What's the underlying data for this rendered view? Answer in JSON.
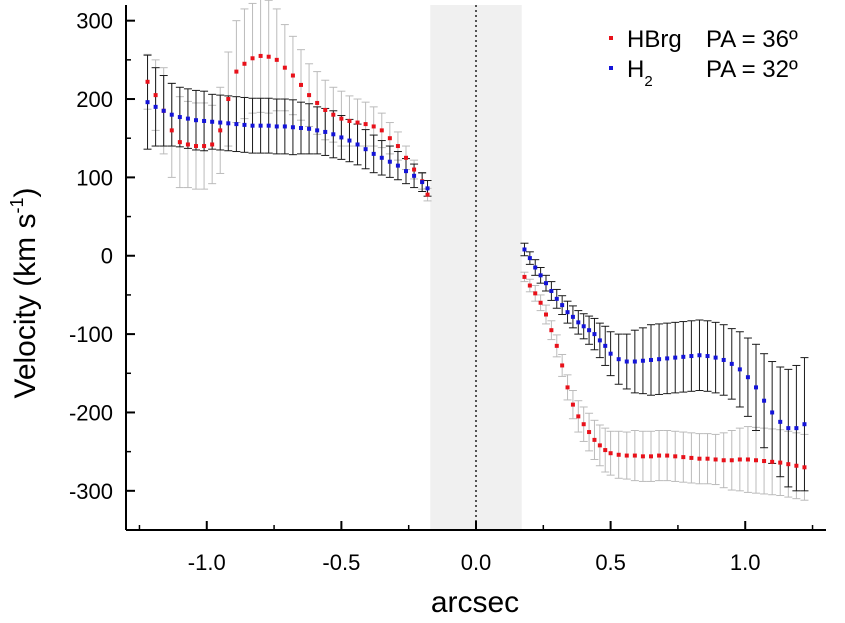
{
  "chart_data": {
    "type": "scatter",
    "title": "",
    "xlabel": "arcsec",
    "ylabel": "Velocity (km s⁻¹)",
    "ylabel_parts": {
      "main": "Velocity (km s",
      "sup": "-1",
      "close": ")"
    },
    "xlim": [
      -1.3,
      1.3
    ],
    "ylim": [
      -350,
      320
    ],
    "xticks": [
      -1.0,
      -0.5,
      0.0,
      0.5,
      1.0
    ],
    "xtick_labels": [
      "-1.0",
      "-0.5",
      "0.0",
      "0.5",
      "1.0"
    ],
    "yticks": [
      -300,
      -200,
      -100,
      0,
      100,
      200,
      300
    ],
    "ytick_labels": [
      "-300",
      "-200",
      "-100",
      "0",
      "100",
      "200",
      "300"
    ],
    "shaded_region": {
      "x": [
        -0.17,
        0.17
      ],
      "color": "#f0f0f0"
    },
    "zero_line": {
      "x": 0.0,
      "style": "dotted"
    },
    "legend": {
      "position": "top-right",
      "entries": [
        {
          "name": "HBrg",
          "sub": "",
          "label": "PA = 36º",
          "color": "#e8111a"
        },
        {
          "name": "H",
          "sub": "2",
          "label": "PA = 32º",
          "color": "#1414d8"
        }
      ]
    },
    "series": [
      {
        "name": "HBrg",
        "pa_label": "PA = 36º",
        "color": "#e8111a",
        "errorbar_color": "#bbbbbb",
        "x": [
          -1.22,
          -1.19,
          -1.16,
          -1.13,
          -1.1,
          -1.07,
          -1.04,
          -1.01,
          -0.98,
          -0.95,
          -0.92,
          -0.89,
          -0.86,
          -0.83,
          -0.8,
          -0.77,
          -0.74,
          -0.71,
          -0.68,
          -0.65,
          -0.62,
          -0.59,
          -0.56,
          -0.53,
          -0.5,
          -0.47,
          -0.44,
          -0.41,
          -0.38,
          -0.35,
          -0.32,
          -0.29,
          -0.26,
          -0.23,
          -0.2,
          -0.18,
          0.18,
          0.2,
          0.22,
          0.24,
          0.26,
          0.28,
          0.3,
          0.32,
          0.34,
          0.36,
          0.38,
          0.4,
          0.42,
          0.44,
          0.46,
          0.48,
          0.5,
          0.53,
          0.56,
          0.59,
          0.62,
          0.65,
          0.68,
          0.71,
          0.74,
          0.77,
          0.8,
          0.83,
          0.86,
          0.89,
          0.92,
          0.95,
          0.98,
          1.01,
          1.04,
          1.07,
          1.1,
          1.13,
          1.16,
          1.19,
          1.22
        ],
        "y": [
          222,
          205,
          185,
          160,
          145,
          142,
          140,
          140,
          142,
          160,
          200,
          235,
          245,
          252,
          255,
          254,
          250,
          240,
          230,
          218,
          205,
          195,
          186,
          180,
          175,
          172,
          170,
          168,
          165,
          160,
          150,
          140,
          125,
          110,
          95,
          78,
          -27,
          -38,
          -48,
          -60,
          -75,
          -95,
          -115,
          -140,
          -168,
          -190,
          -205,
          -215,
          -225,
          -235,
          -242,
          -248,
          -252,
          -254,
          -255,
          -255,
          -256,
          -256,
          -255,
          -255,
          -256,
          -257,
          -258,
          -259,
          -259,
          -260,
          -261,
          -261,
          -260,
          -260,
          -261,
          -262,
          -263,
          -264,
          -266,
          -268,
          -270
        ],
        "err": [
          35,
          45,
          55,
          60,
          58,
          55,
          55,
          55,
          50,
          55,
          60,
          65,
          70,
          70,
          72,
          72,
          65,
          55,
          50,
          45,
          40,
          40,
          38,
          35,
          35,
          32,
          30,
          28,
          25,
          22,
          20,
          18,
          15,
          12,
          10,
          8,
          6,
          8,
          10,
          10,
          12,
          12,
          14,
          14,
          16,
          18,
          20,
          22,
          24,
          25,
          26,
          28,
          28,
          30,
          30,
          32,
          32,
          32,
          32,
          32,
          32,
          32,
          32,
          32,
          32,
          32,
          35,
          38,
          40,
          42,
          42,
          42,
          42,
          42,
          42,
          42,
          42
        ]
      },
      {
        "name": "H2",
        "pa_label": "PA = 32º",
        "color": "#1414d8",
        "errorbar_color": "#1a1a1a",
        "x": [
          -1.22,
          -1.19,
          -1.16,
          -1.13,
          -1.1,
          -1.07,
          -1.04,
          -1.01,
          -0.98,
          -0.95,
          -0.92,
          -0.89,
          -0.86,
          -0.83,
          -0.8,
          -0.77,
          -0.74,
          -0.71,
          -0.68,
          -0.65,
          -0.62,
          -0.59,
          -0.56,
          -0.53,
          -0.5,
          -0.47,
          -0.44,
          -0.41,
          -0.38,
          -0.35,
          -0.32,
          -0.29,
          -0.26,
          -0.23,
          -0.2,
          -0.18,
          0.18,
          0.2,
          0.22,
          0.24,
          0.26,
          0.28,
          0.3,
          0.32,
          0.34,
          0.36,
          0.38,
          0.4,
          0.42,
          0.44,
          0.46,
          0.48,
          0.5,
          0.53,
          0.56,
          0.59,
          0.62,
          0.65,
          0.68,
          0.71,
          0.74,
          0.77,
          0.8,
          0.83,
          0.86,
          0.89,
          0.92,
          0.95,
          0.98,
          1.01,
          1.04,
          1.07,
          1.1,
          1.13,
          1.16,
          1.19,
          1.22
        ],
        "y": [
          196,
          190,
          185,
          180,
          177,
          175,
          173,
          172,
          171,
          170,
          169,
          168,
          167,
          166,
          166,
          166,
          165,
          165,
          164,
          163,
          162,
          160,
          158,
          155,
          151,
          147,
          142,
          136,
          130,
          125,
          120,
          115,
          108,
          102,
          94,
          86,
          8,
          -3,
          -15,
          -25,
          -35,
          -45,
          -55,
          -63,
          -72,
          -78,
          -85,
          -90,
          -95,
          -100,
          -108,
          -115,
          -125,
          -132,
          -135,
          -135,
          -134,
          -133,
          -132,
          -131,
          -130,
          -129,
          -128,
          -127,
          -128,
          -130,
          -133,
          -138,
          -145,
          -155,
          -168,
          -185,
          -200,
          -212,
          -220,
          -220,
          -215
        ],
        "err": [
          60,
          50,
          45,
          40,
          38,
          38,
          38,
          38,
          35,
          35,
          35,
          35,
          35,
          35,
          35,
          35,
          35,
          35,
          35,
          33,
          32,
          30,
          30,
          30,
          28,
          27,
          26,
          25,
          24,
          22,
          20,
          18,
          16,
          15,
          12,
          10,
          8,
          8,
          10,
          10,
          10,
          12,
          12,
          12,
          14,
          14,
          15,
          16,
          18,
          20,
          22,
          25,
          28,
          32,
          35,
          40,
          42,
          45,
          45,
          45,
          45,
          45,
          45,
          45,
          45,
          45,
          45,
          45,
          48,
          50,
          55,
          60,
          65,
          70,
          75,
          80,
          85
        ]
      }
    ]
  }
}
